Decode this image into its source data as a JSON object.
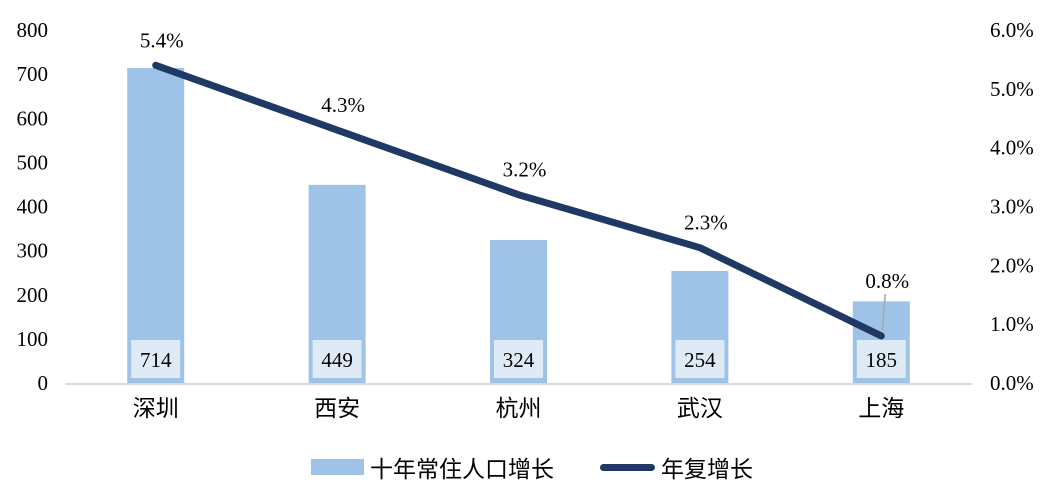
{
  "chart_data": {
    "type": "bar+line",
    "categories": [
      "深圳",
      "西安",
      "杭州",
      "武汉",
      "上海"
    ],
    "series": [
      {
        "name": "十年常住人口增长",
        "type": "bar",
        "axis": "left",
        "values": [
          714,
          449,
          324,
          254,
          185
        ],
        "labels": [
          "714",
          "449",
          "324",
          "254",
          "185"
        ],
        "color": "#9FC3E6",
        "label_box_color": "#DEEBF7"
      },
      {
        "name": "年复增长",
        "type": "line",
        "axis": "right",
        "values": [
          5.4,
          4.3,
          3.2,
          2.3,
          0.8
        ],
        "labels": [
          "5.4%",
          "4.3%",
          "3.2%",
          "2.3%",
          "0.8%"
        ],
        "color": "#1F3864",
        "callout_index": 4
      }
    ],
    "left_axis": {
      "min": 0,
      "max": 800,
      "ticks": [
        "800",
        "700",
        "600",
        "500",
        "400",
        "300",
        "200",
        "100",
        "0"
      ]
    },
    "right_axis": {
      "min": 0,
      "max": 6,
      "ticks": [
        "6.0%",
        "5.0%",
        "4.0%",
        "3.0%",
        "2.0%",
        "1.0%",
        "0.0%"
      ]
    },
    "title": "",
    "xlabel": "",
    "ylabel": "",
    "grid": false,
    "legend_position": "bottom",
    "background_color": "#FFFFFF",
    "axis_line_color": "#D9D9D9",
    "leader_line_color": "#A6A6A6",
    "text_color": "#000000"
  }
}
